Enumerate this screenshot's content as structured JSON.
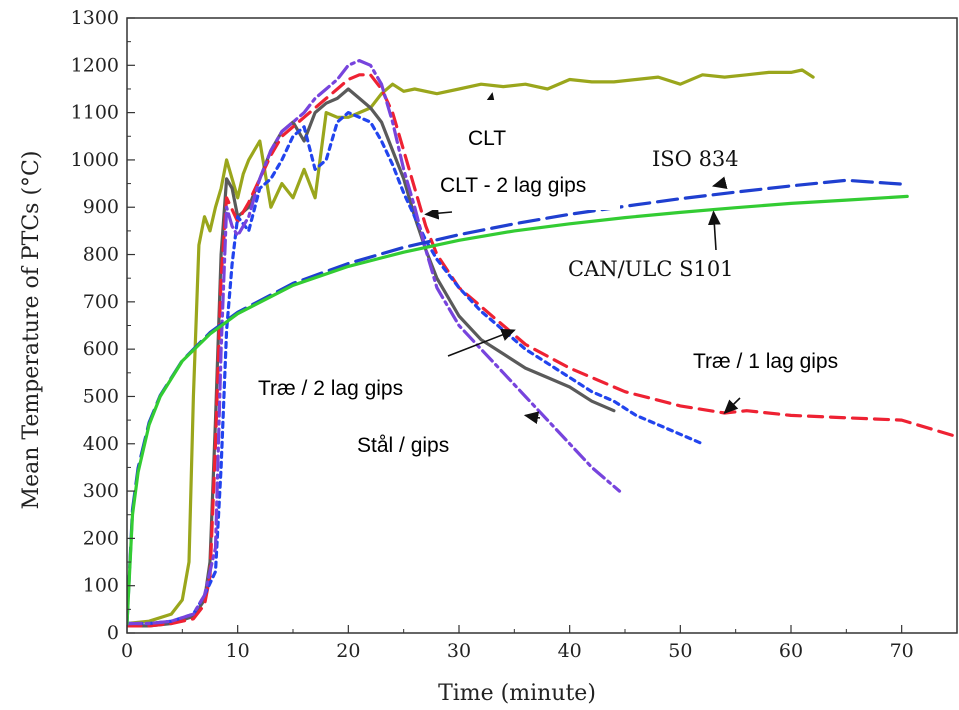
{
  "chart_data": {
    "type": "line",
    "xlabel": "Time (minute)",
    "ylabel": "Mean Temperature of PTCs (°C)",
    "xlim": [
      0,
      75
    ],
    "ylim": [
      0,
      1300
    ],
    "xticks": [
      0,
      10,
      20,
      30,
      40,
      50,
      60,
      70
    ],
    "yticks": [
      0,
      100,
      200,
      300,
      400,
      500,
      600,
      700,
      800,
      900,
      1000,
      1100,
      1200,
      1300
    ],
    "grid": false,
    "series": [
      {
        "name": "CLT",
        "color": "#9aa61c",
        "style": "solid",
        "x": [
          0,
          2,
          4,
          5,
          5.6,
          6,
          6.5,
          7,
          7.5,
          8,
          8.5,
          9,
          9.5,
          10,
          10.5,
          11,
          12,
          13,
          14,
          15,
          16,
          17,
          18,
          19,
          20,
          21,
          22,
          23,
          24,
          25,
          26,
          28,
          30,
          32,
          34,
          36,
          38,
          40,
          42,
          44,
          46,
          48,
          50,
          52,
          54,
          56,
          58,
          60,
          61,
          62
        ],
        "y": [
          20,
          25,
          40,
          70,
          150,
          500,
          820,
          880,
          850,
          900,
          940,
          1000,
          960,
          920,
          970,
          1000,
          1040,
          900,
          950,
          920,
          980,
          920,
          1100,
          1090,
          1090,
          1100,
          1110,
          1140,
          1160,
          1145,
          1150,
          1140,
          1150,
          1160,
          1155,
          1160,
          1150,
          1170,
          1165,
          1165,
          1170,
          1175,
          1160,
          1180,
          1175,
          1180,
          1185,
          1185,
          1190,
          1175
        ]
      },
      {
        "name": "CLT - 2 lag gips",
        "color": "#5a5a5a",
        "style": "solid",
        "x": [
          0,
          2,
          4,
          6,
          7,
          7.5,
          8,
          8.5,
          9,
          9.5,
          10,
          11,
          12,
          13,
          14,
          15,
          16,
          17,
          18,
          19,
          20,
          21,
          22,
          23,
          24,
          25,
          26,
          27,
          28,
          30,
          32,
          34,
          36,
          38,
          40,
          42,
          44
        ],
        "y": [
          15,
          15,
          20,
          35,
          70,
          150,
          450,
          800,
          960,
          940,
          880,
          900,
          960,
          1020,
          1060,
          1080,
          1040,
          1100,
          1120,
          1130,
          1150,
          1130,
          1110,
          1080,
          1020,
          960,
          880,
          810,
          750,
          670,
          620,
          590,
          560,
          540,
          520,
          490,
          470
        ]
      },
      {
        "name": "Træ / 1 lag gips",
        "color": "#ee2233",
        "style": "dashed",
        "x": [
          0,
          2,
          4,
          6,
          7,
          7.5,
          8,
          8.5,
          9,
          10,
          11,
          12,
          13,
          14,
          15,
          16,
          17,
          18,
          19,
          20,
          21,
          22,
          23,
          24,
          25,
          26,
          27,
          28,
          30,
          32,
          34,
          36,
          40,
          45,
          50,
          54,
          56,
          60,
          65,
          70,
          75
        ],
        "y": [
          15,
          15,
          20,
          30,
          60,
          120,
          400,
          750,
          920,
          870,
          910,
          960,
          1010,
          1050,
          1070,
          1090,
          1110,
          1130,
          1150,
          1170,
          1180,
          1180,
          1150,
          1100,
          1020,
          940,
          860,
          800,
          730,
          690,
          650,
          610,
          560,
          510,
          480,
          465,
          470,
          460,
          455,
          450,
          415
        ]
      },
      {
        "name": "Træ / 2 lag gips",
        "color": "#2244ee",
        "style": "dotted",
        "x": [
          0,
          2,
          4,
          6,
          7,
          8,
          8.5,
          9,
          9.5,
          10,
          11,
          12,
          13,
          14,
          15,
          16,
          17,
          18,
          19,
          20,
          21,
          22,
          23,
          24,
          25,
          26,
          27,
          28,
          29,
          30,
          32,
          34,
          36,
          38,
          40,
          42,
          44,
          46,
          48,
          50,
          52
        ],
        "y": [
          20,
          20,
          25,
          40,
          80,
          130,
          350,
          640,
          780,
          880,
          850,
          940,
          960,
          1000,
          1050,
          1070,
          980,
          1000,
          1080,
          1100,
          1090,
          1080,
          1040,
          990,
          930,
          880,
          830,
          790,
          760,
          730,
          680,
          640,
          600,
          570,
          540,
          510,
          490,
          460,
          440,
          420,
          400
        ]
      },
      {
        "name": "Stål / gips",
        "color": "#7744dd",
        "style": "dashdot",
        "x": [
          0,
          2,
          4,
          6,
          7,
          8,
          8.5,
          9,
          9.5,
          10,
          11,
          12,
          13,
          14,
          15,
          16,
          17,
          18,
          19,
          20,
          21,
          22,
          23,
          24,
          25,
          26,
          27,
          28,
          29,
          30,
          32,
          34,
          36,
          38,
          40,
          42,
          44.5
        ],
        "y": [
          20,
          20,
          25,
          40,
          80,
          180,
          600,
          900,
          860,
          840,
          880,
          960,
          1020,
          1060,
          1080,
          1100,
          1130,
          1150,
          1170,
          1200,
          1210,
          1200,
          1160,
          1080,
          980,
          900,
          810,
          730,
          690,
          650,
          600,
          550,
          500,
          450,
          400,
          350,
          300
        ]
      },
      {
        "name": "ISO 834",
        "color": "#1f3fd0",
        "style": "longdash",
        "x": [
          0,
          0.5,
          1,
          2,
          3,
          5,
          7.5,
          10,
          15,
          20,
          25,
          30,
          35,
          40,
          45,
          50,
          55,
          60,
          65,
          70.5
        ],
        "y": [
          20,
          261,
          349,
          445,
          502,
          576,
          635,
          678,
          739,
          781,
          815,
          842,
          865,
          885,
          902,
          918,
          932,
          945,
          957,
          948
        ]
      },
      {
        "name": "CAN/ULC S101",
        "color": "#33cc33",
        "style": "solid",
        "x": [
          0,
          0.5,
          1,
          2,
          3,
          5,
          7.5,
          10,
          15,
          20,
          25,
          30,
          35,
          40,
          45,
          50,
          55,
          60,
          65,
          70.5
        ],
        "y": [
          20,
          250,
          340,
          440,
          500,
          575,
          632,
          675,
          735,
          775,
          805,
          830,
          850,
          865,
          878,
          889,
          899,
          908,
          915,
          923
        ]
      }
    ],
    "annotations": [
      {
        "text": "CLT",
        "boxed": true,
        "arrow_to": [
          33,
          1140
        ]
      },
      {
        "text": "CLT - 2 lag gips",
        "boxed": true,
        "arrow_to": [
          27,
          885
        ]
      },
      {
        "text": "ISO 834",
        "boxed": false,
        "arrow_to": [
          53,
          945
        ]
      },
      {
        "text": "CAN/ULC S101",
        "boxed": false,
        "arrow_to": [
          53,
          890
        ]
      },
      {
        "text": "Træ / 1 lag gips",
        "boxed": true,
        "arrow_to": [
          54,
          465
        ]
      },
      {
        "text": "Træ / 2 lag gips",
        "boxed": true,
        "arrow_to": [
          35,
          640
        ]
      },
      {
        "text": "Stål / gips",
        "boxed": true,
        "arrow_to": [
          36,
          460
        ]
      }
    ]
  }
}
